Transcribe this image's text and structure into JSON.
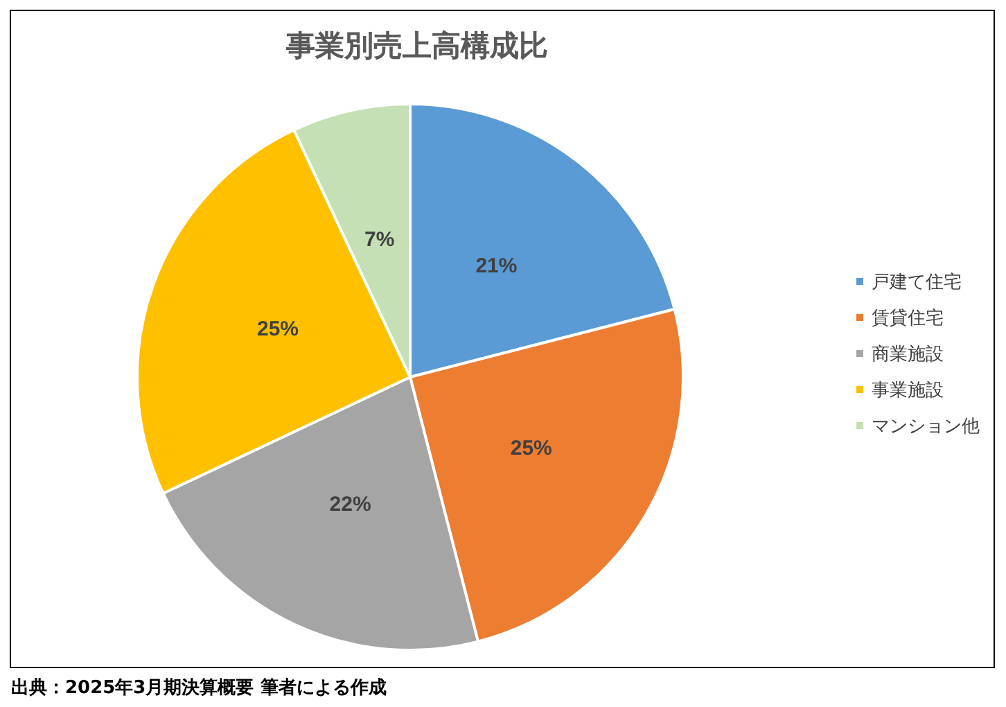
{
  "chart_data": {
    "type": "pie",
    "title": "事業別売上高構成比",
    "categories": [
      "戸建て住宅",
      "賃貸住宅",
      "商業施設",
      "事業施設",
      "マンション他"
    ],
    "values": [
      21,
      25,
      22,
      25,
      7
    ],
    "value_labels": [
      "21%",
      "25%",
      "22%",
      "25%",
      "7%"
    ],
    "colors": [
      "#5b9bd5",
      "#ed7d31",
      "#a5a5a5",
      "#ffc000",
      "#c5e0b4"
    ],
    "legend": "right",
    "annotations": [
      "出典：2025年3月期決算概要 筆者による作成"
    ]
  }
}
